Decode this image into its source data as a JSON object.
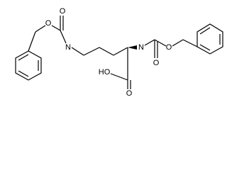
{
  "atoms": [
    {
      "label": "O"
    },
    {
      "label": "O"
    },
    {
      "label": "N"
    },
    {
      "label": "N"
    },
    {
      "label": "O"
    },
    {
      "label": "O"
    },
    {
      "label": "HO"
    },
    {
      "label": "O"
    }
  ]
}
